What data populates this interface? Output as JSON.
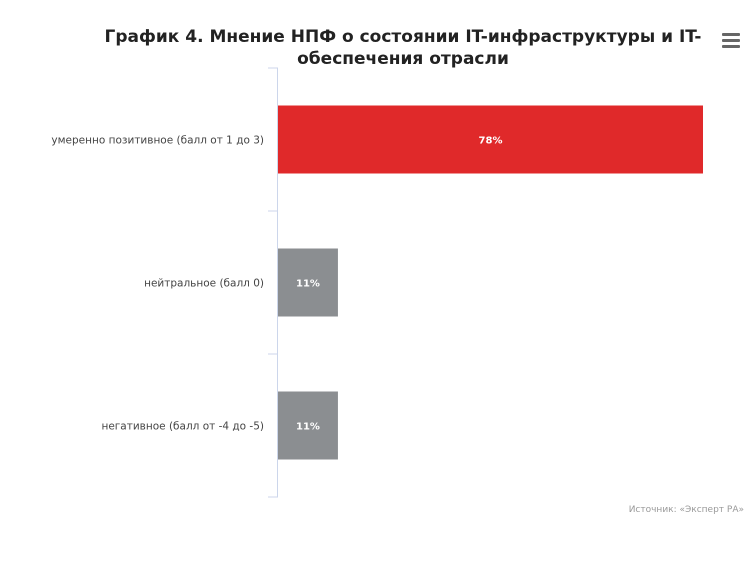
{
  "chart_data": {
    "type": "bar",
    "orientation": "horizontal",
    "title": "График 4. Мнение НПФ о состоянии IT-инфраструктуры и IT-обеспечения отрасли",
    "categories": [
      "умеренно позитивное (балл от 1 до 3)",
      "нейтральное (балл 0)",
      "негативное (балл от -4 до -5)"
    ],
    "values": [
      78,
      11,
      11
    ],
    "data_labels": [
      "78%",
      "11%",
      "11%"
    ],
    "bar_colors": [
      "#e0292a",
      "#8b8e91",
      "#8b8e91"
    ],
    "xlim": [
      0,
      78
    ],
    "grid": false,
    "legend": "none"
  },
  "credits": "Источник: «Эксперт РА»",
  "menu": {
    "icon": "hamburger-menu-icon"
  }
}
